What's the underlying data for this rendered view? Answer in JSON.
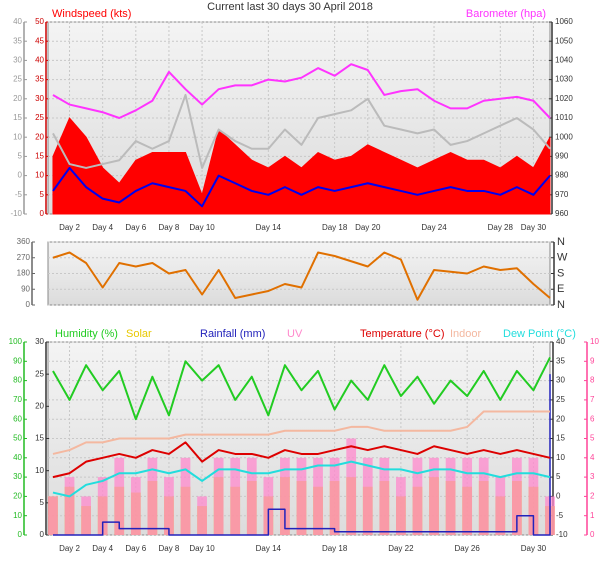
{
  "chart_data": [
    {
      "type": "line",
      "title": "Current last 30 days 30 April 2018",
      "x": [
        1,
        2,
        3,
        4,
        5,
        6,
        7,
        8,
        9,
        10,
        11,
        12,
        13,
        14,
        15,
        16,
        17,
        18,
        19,
        20,
        21,
        22,
        23,
        24,
        25,
        26,
        27,
        28,
        29,
        30,
        31
      ],
      "xlim": [
        0.7,
        31
      ],
      "xticks": [
        {
          "value": 2,
          "label": "Day 2"
        },
        {
          "value": 4,
          "label": "Day 4"
        },
        {
          "value": 6,
          "label": "Day 6"
        },
        {
          "value": 8,
          "label": "Day 8"
        },
        {
          "value": 10,
          "label": "Day 10"
        },
        {
          "value": 14,
          "label": "Day 14"
        },
        {
          "value": 18,
          "label": "Day 18"
        },
        {
          "value": 20,
          "label": "Day 20"
        },
        {
          "value": 24,
          "label": "Day 24"
        },
        {
          "value": 28,
          "label": "Day 28"
        },
        {
          "value": 30,
          "label": "Day 30"
        }
      ],
      "ylim": [
        0,
        50
      ],
      "yticks": [
        0,
        5,
        10,
        15,
        20,
        25,
        30,
        35,
        40,
        45,
        50
      ],
      "y3lim": [
        -10,
        40
      ],
      "y3ticks": [
        -10,
        -5,
        0,
        5,
        10,
        15,
        20,
        25,
        30,
        35,
        40
      ],
      "y2lim": [
        960,
        1060
      ],
      "y2ticks": [
        960,
        970,
        980,
        990,
        1000,
        1010,
        1020,
        1030,
        1040,
        1050,
        1060
      ],
      "axis_colors": {
        "y": "#cc0000",
        "y3": "#999999",
        "y2": "#333333"
      },
      "grid": true,
      "series": [
        {
          "name": "Windspeed (kts)",
          "color": "#ff0000",
          "kind": "area",
          "axis": "y",
          "values": [
            15,
            25,
            20,
            12,
            8,
            14,
            16,
            16,
            16,
            5,
            22,
            18,
            14,
            12,
            15,
            12,
            16,
            14,
            15,
            18,
            16,
            14,
            12,
            14,
            16,
            14,
            14,
            12,
            15,
            12,
            20
          ]
        },
        {
          "color": "#0000ee",
          "kind": "line",
          "axis": "y",
          "values": [
            6,
            12,
            7,
            4,
            3,
            6,
            8,
            7,
            6,
            2,
            10,
            8,
            6,
            5,
            7,
            5,
            7,
            6,
            7,
            8,
            7,
            6,
            5,
            6,
            7,
            6,
            6,
            5,
            7,
            5,
            10
          ]
        },
        {
          "color": "#bbbbbb",
          "kind": "line",
          "axis": "y3",
          "values": [
            11,
            3,
            2,
            3,
            4,
            9,
            7,
            9,
            21,
            2,
            12,
            9,
            7,
            7,
            12,
            8,
            15,
            16,
            17,
            20,
            13,
            12,
            11,
            12,
            8,
            9,
            11,
            13,
            15,
            12,
            7
          ]
        },
        {
          "name": "Barometer (hpa)",
          "color": "#ff33ff",
          "kind": "line",
          "axis": "y2",
          "values": [
            1022,
            1017,
            1015,
            1013,
            1010,
            1014,
            1019,
            1034,
            1025,
            1017,
            1025,
            1027,
            1027,
            1030,
            1029,
            1031,
            1036,
            1032,
            1038,
            1035,
            1022,
            1024,
            1025,
            1019,
            1015,
            1015,
            1019,
            1020,
            1021,
            1019,
            1010
          ]
        }
      ]
    },
    {
      "type": "line",
      "x": [
        1,
        2,
        3,
        4,
        5,
        6,
        7,
        8,
        9,
        10,
        11,
        12,
        13,
        14,
        15,
        16,
        17,
        18,
        19,
        20,
        21,
        22,
        23,
        24,
        25,
        26,
        27,
        28,
        29,
        30,
        31
      ],
      "xlim": [
        0.7,
        31
      ],
      "ylim": [
        0,
        360
      ],
      "yticks": [
        0,
        90,
        180,
        270,
        360
      ],
      "y2lim": [
        0,
        360
      ],
      "y2ticks": [
        {
          "value": 0,
          "label": "N"
        },
        {
          "value": 90,
          "label": "E"
        },
        {
          "value": 180,
          "label": "S"
        },
        {
          "value": 270,
          "label": "W"
        },
        {
          "value": 360,
          "label": "N"
        }
      ],
      "axis_colors": {
        "y": "#666666",
        "y2": "#333333"
      },
      "grid": true,
      "series": [
        {
          "color": "#e07000",
          "kind": "line",
          "axis": "y",
          "values": [
            270,
            300,
            240,
            100,
            240,
            220,
            240,
            180,
            200,
            60,
            200,
            40,
            60,
            80,
            120,
            100,
            300,
            280,
            250,
            220,
            300,
            260,
            30,
            200,
            190,
            180,
            220,
            200,
            210,
            120,
            40
          ]
        }
      ]
    },
    {
      "type": "line",
      "x": [
        1,
        2,
        3,
        4,
        5,
        6,
        7,
        8,
        9,
        10,
        11,
        12,
        13,
        14,
        15,
        16,
        17,
        18,
        19,
        20,
        21,
        22,
        23,
        24,
        25,
        26,
        27,
        28,
        29,
        30,
        31
      ],
      "xlim": [
        0.7,
        31
      ],
      "xticks": [
        {
          "value": 2,
          "label": "Day 2"
        },
        {
          "value": 4,
          "label": "Day 4"
        },
        {
          "value": 6,
          "label": "Day 6"
        },
        {
          "value": 8,
          "label": "Day 8"
        },
        {
          "value": 10,
          "label": "Day 10"
        },
        {
          "value": 14,
          "label": "Day 14"
        },
        {
          "value": 18,
          "label": "Day 18"
        },
        {
          "value": 22,
          "label": "Day 22"
        },
        {
          "value": 26,
          "label": "Day 26"
        },
        {
          "value": 30,
          "label": "Day 30"
        }
      ],
      "ylim": [
        0,
        100
      ],
      "yticks": [
        0,
        10,
        20,
        30,
        40,
        50,
        60,
        70,
        80,
        90,
        100
      ],
      "y3lim": [
        0,
        30
      ],
      "y3ticks": [
        0,
        5,
        10,
        15,
        20,
        25,
        30
      ],
      "y2lim": [
        -10,
        40
      ],
      "y2ticks": [
        -10,
        -5,
        0,
        5,
        10,
        15,
        20,
        25,
        30,
        35,
        40
      ],
      "y4lim": [
        0,
        10
      ],
      "y4ticks": [
        0,
        1,
        2,
        3,
        4,
        5,
        6,
        7,
        8,
        9,
        10
      ],
      "axis_colors": {
        "y": "#22bb22",
        "y3": "#333333",
        "y2": "#333333",
        "y4": "#ff4499"
      },
      "grid": true,
      "series": [
        {
          "name": "Humidity (%)",
          "color": "#22cc22",
          "kind": "line",
          "axis": "y",
          "values": [
            85,
            70,
            88,
            75,
            85,
            60,
            82,
            62,
            90,
            80,
            88,
            70,
            82,
            62,
            88,
            75,
            85,
            65,
            80,
            70,
            88,
            72,
            82,
            68,
            80,
            72,
            85,
            70,
            85,
            75,
            92
          ]
        },
        {
          "name": "Solar",
          "color": "#e8c800",
          "kind": "bar",
          "axis": "y",
          "values": [
            20,
            25,
            15,
            20,
            25,
            22,
            28,
            20,
            25,
            15,
            30,
            25,
            28,
            20,
            30,
            28,
            25,
            28,
            30,
            25,
            28,
            20,
            25,
            30,
            28,
            25,
            28,
            20,
            28,
            25,
            15
          ]
        },
        {
          "name": "Rainfall (mm)",
          "color": "#2222bb",
          "kind": "step",
          "axis": "y3",
          "values": [
            0,
            0,
            0,
            2,
            1,
            1,
            1,
            0,
            0,
            0,
            0,
            0,
            0,
            4,
            1,
            1,
            1,
            0.5,
            0.5,
            0.5,
            0.5,
            0.5,
            0.5,
            0.5,
            0.5,
            0.5,
            0.5,
            0.5,
            3,
            0,
            25
          ]
        },
        {
          "name": "UV",
          "color": "#ff88cc",
          "kind": "bar",
          "axis": "y4",
          "values": [
            2,
            3,
            2,
            3,
            4,
            3,
            4,
            3,
            4,
            2,
            4,
            4,
            4,
            3,
            4,
            4,
            4,
            4,
            5,
            4,
            4,
            3,
            4,
            4,
            4,
            4,
            4,
            3,
            4,
            4,
            2
          ]
        },
        {
          "name": "Temperature (°C)",
          "color": "#dd0000",
          "kind": "line",
          "axis": "y2",
          "values": [
            5,
            6,
            9,
            10,
            11,
            10,
            12,
            11,
            14,
            9,
            12,
            11,
            11,
            10,
            12,
            11,
            11,
            12,
            13,
            12,
            13,
            12,
            11,
            13,
            12,
            11,
            12,
            11,
            12,
            11,
            10
          ]
        },
        {
          "name": "Indoor",
          "color": "#f4b8a0",
          "kind": "line",
          "axis": "y2",
          "values": [
            11,
            12,
            14,
            14,
            15,
            15,
            15,
            15,
            16,
            16,
            16,
            16,
            16,
            16,
            17,
            17,
            17,
            17,
            18,
            18,
            17,
            17,
            17,
            17,
            17,
            18,
            22,
            22,
            22,
            22,
            22
          ]
        },
        {
          "name": "Dew Point (°C)",
          "color": "#22dddd",
          "kind": "line",
          "axis": "y2",
          "values": [
            1,
            0,
            3,
            4,
            6,
            6,
            7,
            6,
            7,
            4,
            7,
            7,
            6,
            6,
            7,
            7,
            8,
            8,
            9,
            8,
            7,
            7,
            6,
            7,
            7,
            6,
            6,
            5,
            6,
            6,
            5
          ]
        }
      ]
    }
  ]
}
